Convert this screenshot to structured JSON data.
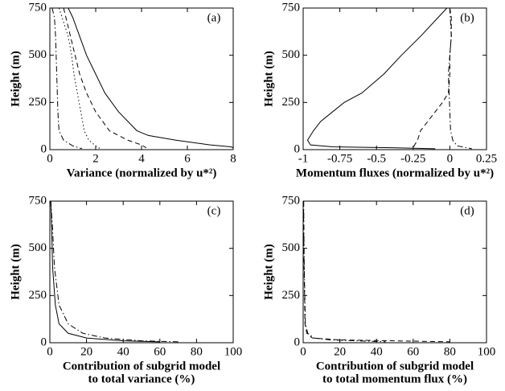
{
  "chart_data": [
    {
      "type": "line",
      "annotation": "(a)",
      "ylabel": "Height (m)",
      "xlabel": [
        "Variance (normalized by u*²)"
      ],
      "xlim": [
        0,
        8
      ],
      "xticks": [
        0,
        2,
        4,
        6,
        8
      ],
      "ylim": [
        0,
        750
      ],
      "yticks": [
        0,
        250,
        500,
        750
      ],
      "series": [
        {
          "color": "#000000",
          "dash": "solid",
          "y": [
            750,
            700,
            600,
            500,
            400,
            300,
            200,
            100,
            75,
            50,
            25,
            15,
            10
          ],
          "x": [
            0.8,
            1.0,
            1.3,
            1.6,
            2.0,
            2.4,
            3.0,
            3.8,
            4.3,
            5.5,
            7,
            7.9,
            8
          ]
        },
        {
          "color": "#000000",
          "dash": "dashed",
          "y": [
            750,
            700,
            600,
            500,
            400,
            300,
            200,
            100,
            50,
            25,
            10
          ],
          "x": [
            0.6,
            0.7,
            0.9,
            1.1,
            1.3,
            1.6,
            2.0,
            2.6,
            3.4,
            4.0,
            4.2
          ]
        },
        {
          "color": "#000000",
          "dash": "dotted",
          "y": [
            750,
            600,
            500,
            400,
            300,
            200,
            100,
            50,
            20,
            5
          ],
          "x": [
            0.4,
            0.8,
            0.95,
            1.05,
            1.2,
            1.35,
            1.5,
            1.7,
            2.0,
            2.2
          ]
        },
        {
          "color": "#000000",
          "dash": "dashdot",
          "y": [
            750,
            700,
            600,
            400,
            200,
            100,
            50,
            20,
            5
          ],
          "x": [
            0.1,
            0.2,
            0.25,
            0.3,
            0.35,
            0.4,
            0.6,
            1.0,
            1.4
          ]
        }
      ]
    },
    {
      "type": "line",
      "annotation": "(b)",
      "ylabel": "Height (m)",
      "xlabel": [
        "Momentum fluxes (normalized by u*²)"
      ],
      "xlim": [
        -1,
        0.25
      ],
      "xticks": [
        -1,
        -0.75,
        -0.5,
        -0.25,
        0,
        0.25
      ],
      "ylim": [
        0,
        750
      ],
      "yticks": [
        0,
        250,
        500,
        750
      ],
      "series": [
        {
          "color": "#000000",
          "dash": "solid",
          "y": [
            750,
            700,
            600,
            500,
            400,
            300,
            250,
            200,
            150,
            100,
            50,
            25,
            15,
            10,
            5
          ],
          "x": [
            -0.02,
            -0.08,
            -0.2,
            -0.33,
            -0.45,
            -0.6,
            -0.72,
            -0.8,
            -0.88,
            -0.93,
            -0.97,
            -0.95,
            -0.8,
            -0.4,
            -0.1
          ]
        },
        {
          "color": "#000000",
          "dash": "dashed",
          "y": [
            750,
            700,
            600,
            500,
            400,
            300,
            250,
            200,
            150,
            100,
            50,
            25,
            10
          ],
          "x": [
            0,
            0.01,
            0.01,
            0,
            0,
            -0.01,
            -0.05,
            -0.1,
            -0.15,
            -0.2,
            -0.22,
            -0.24,
            -0.25
          ]
        },
        {
          "color": "#000000",
          "dash": "dashdot",
          "y": [
            750,
            600,
            400,
            200,
            100,
            50,
            20,
            5
          ],
          "x": [
            0,
            0.01,
            -0.01,
            0,
            0.005,
            0.02,
            0.05,
            0.15
          ]
        }
      ]
    },
    {
      "type": "line",
      "annotation": "(c)",
      "ylabel": "Height (m)",
      "xlabel": [
        "Contribution of subgrid model",
        "to total variance (%)"
      ],
      "xlim": [
        0,
        100
      ],
      "xticks": [
        0,
        20,
        40,
        60,
        80,
        100
      ],
      "ylim": [
        0,
        750
      ],
      "yticks": [
        0,
        250,
        500,
        750
      ],
      "series": [
        {
          "color": "#000000",
          "dash": "solid",
          "y": [
            750,
            600,
            400,
            200,
            100,
            50,
            25,
            10,
            5
          ],
          "x": [
            0.5,
            1,
            1.5,
            3,
            5,
            10,
            20,
            40,
            60
          ]
        },
        {
          "color": "#000000",
          "dash": "dashdot",
          "y": [
            750,
            600,
            400,
            200,
            100,
            50,
            25,
            10,
            5
          ],
          "x": [
            0.5,
            1.5,
            2.5,
            5,
            10,
            18,
            30,
            50,
            70
          ]
        }
      ]
    },
    {
      "type": "line",
      "annotation": "(d)",
      "ylabel": "Height (m)",
      "xlabel": [
        "Contribution of subgrid model",
        "to total momentum flux (%)"
      ],
      "xlim": [
        0,
        100
      ],
      "xticks": [
        0,
        20,
        40,
        60,
        80,
        100
      ],
      "ylim": [
        0,
        750
      ],
      "yticks": [
        0,
        250,
        500,
        750
      ],
      "series": [
        {
          "color": "#000000",
          "dash": "dashed",
          "y": [
            750,
            600,
            400,
            100,
            50,
            25,
            15,
            10,
            5
          ],
          "x": [
            0.2,
            0.3,
            0.5,
            1,
            2,
            5,
            20,
            50,
            80
          ]
        },
        {
          "color": "#000000",
          "dash": "dashdot",
          "y": [
            750,
            600,
            400,
            100,
            50,
            25,
            15,
            10,
            5
          ],
          "x": [
            0.3,
            0.4,
            0.6,
            1.2,
            2.5,
            6,
            15,
            30,
            45
          ]
        }
      ]
    }
  ]
}
